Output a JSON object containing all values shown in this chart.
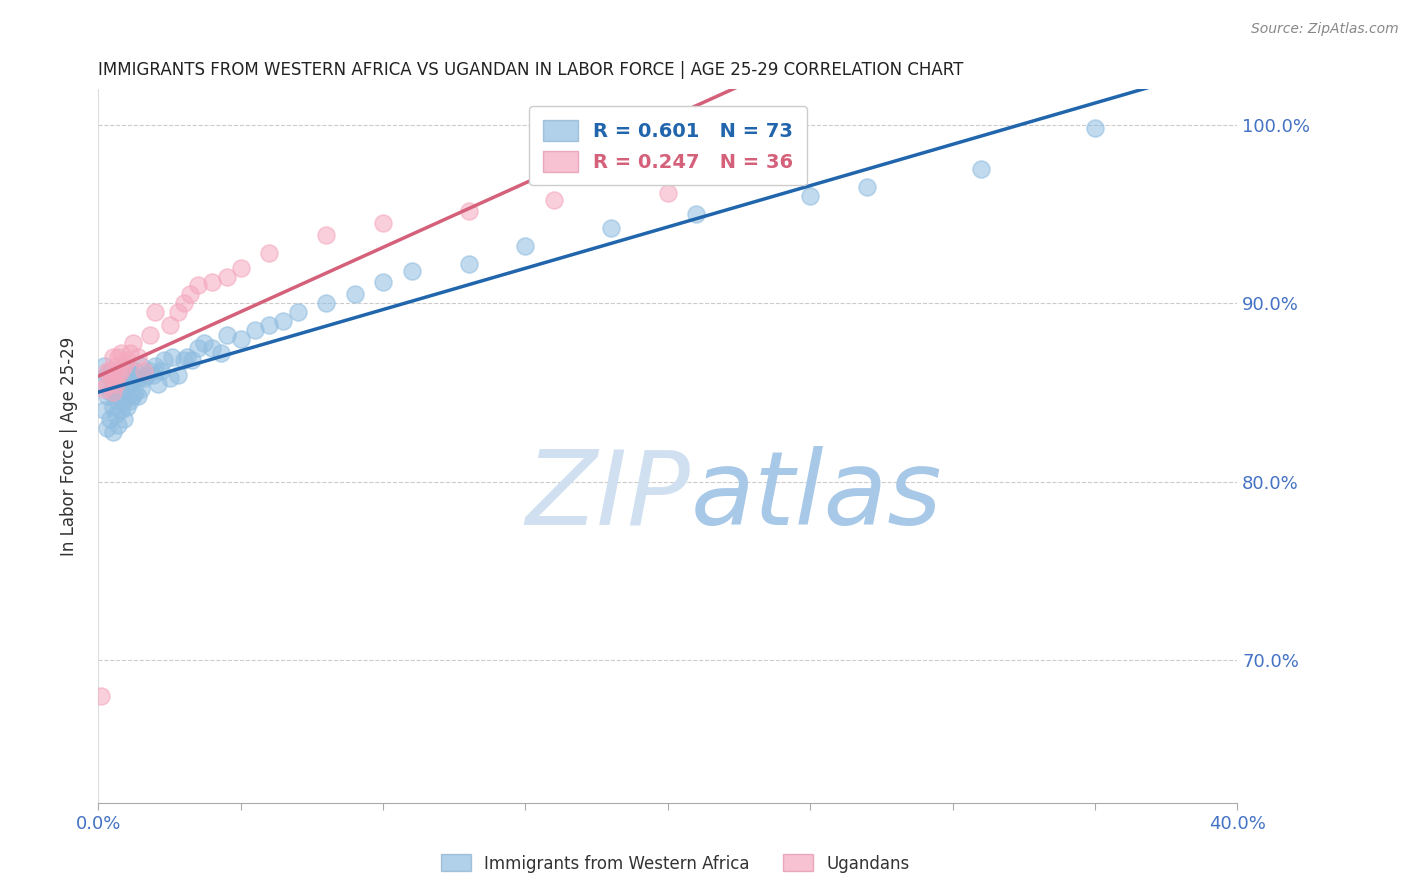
{
  "title": "IMMIGRANTS FROM WESTERN AFRICA VS UGANDAN IN LABOR FORCE | AGE 25-29 CORRELATION CHART",
  "source": "Source: ZipAtlas.com",
  "ylabel": "In Labor Force | Age 25-29",
  "xlim": [
    0.0,
    0.4
  ],
  "ylim": [
    0.62,
    1.02
  ],
  "xticks": [
    0.0,
    0.05,
    0.1,
    0.15,
    0.2,
    0.25,
    0.3,
    0.35,
    0.4
  ],
  "yticks": [
    0.7,
    0.8,
    0.9,
    1.0
  ],
  "yticklabels": [
    "70.0%",
    "80.0%",
    "90.0%",
    "100.0%"
  ],
  "blue_color": "#90bde0",
  "pink_color": "#f4a8be",
  "blue_line_color": "#2166ac",
  "pink_line_color": "#d4607a",
  "R_blue": 0.601,
  "N_blue": 73,
  "R_pink": 0.247,
  "N_pink": 36,
  "watermark_zip": "ZIP",
  "watermark_atlas": "atlas",
  "watermark_color": "#cddff0",
  "grid_color": "#cccccc",
  "title_color": "#222222",
  "tick_label_color": "#4472c4",
  "legend_label_blue": "Immigrants from Western Africa",
  "legend_label_pink": "Ugandans",
  "blue_x": [
    0.001,
    0.002,
    0.002,
    0.003,
    0.003,
    0.003,
    0.004,
    0.004,
    0.004,
    0.005,
    0.005,
    0.005,
    0.005,
    0.006,
    0.006,
    0.006,
    0.007,
    0.007,
    0.007,
    0.008,
    0.008,
    0.009,
    0.009,
    0.009,
    0.01,
    0.01,
    0.01,
    0.011,
    0.011,
    0.012,
    0.012,
    0.013,
    0.013,
    0.014,
    0.014,
    0.015,
    0.015,
    0.016,
    0.017,
    0.018,
    0.019,
    0.02,
    0.021,
    0.022,
    0.023,
    0.025,
    0.026,
    0.028,
    0.03,
    0.031,
    0.033,
    0.035,
    0.037,
    0.04,
    0.043,
    0.045,
    0.05,
    0.055,
    0.06,
    0.065,
    0.07,
    0.08,
    0.09,
    0.1,
    0.11,
    0.13,
    0.15,
    0.18,
    0.21,
    0.25,
    0.27,
    0.31,
    0.35
  ],
  "blue_y": [
    0.855,
    0.84,
    0.865,
    0.83,
    0.848,
    0.86,
    0.835,
    0.85,
    0.862,
    0.828,
    0.842,
    0.852,
    0.862,
    0.838,
    0.848,
    0.858,
    0.832,
    0.845,
    0.855,
    0.84,
    0.85,
    0.835,
    0.845,
    0.858,
    0.842,
    0.852,
    0.862,
    0.845,
    0.855,
    0.848,
    0.86,
    0.85,
    0.862,
    0.848,
    0.858,
    0.852,
    0.865,
    0.858,
    0.86,
    0.862,
    0.86,
    0.865,
    0.855,
    0.862,
    0.868,
    0.858,
    0.87,
    0.86,
    0.868,
    0.87,
    0.868,
    0.875,
    0.878,
    0.875,
    0.872,
    0.882,
    0.88,
    0.885,
    0.888,
    0.89,
    0.895,
    0.9,
    0.905,
    0.912,
    0.918,
    0.922,
    0.932,
    0.942,
    0.95,
    0.96,
    0.965,
    0.975,
    0.998
  ],
  "pink_x": [
    0.001,
    0.002,
    0.003,
    0.003,
    0.004,
    0.005,
    0.005,
    0.005,
    0.006,
    0.006,
    0.007,
    0.007,
    0.008,
    0.008,
    0.009,
    0.01,
    0.011,
    0.012,
    0.014,
    0.016,
    0.018,
    0.02,
    0.025,
    0.028,
    0.03,
    0.032,
    0.035,
    0.04,
    0.045,
    0.05,
    0.06,
    0.08,
    0.1,
    0.13,
    0.16,
    0.2
  ],
  "pink_y": [
    0.68,
    0.852,
    0.855,
    0.862,
    0.862,
    0.85,
    0.858,
    0.87,
    0.855,
    0.865,
    0.86,
    0.87,
    0.862,
    0.872,
    0.865,
    0.868,
    0.872,
    0.878,
    0.87,
    0.862,
    0.882,
    0.895,
    0.888,
    0.895,
    0.9,
    0.905,
    0.91,
    0.912,
    0.915,
    0.92,
    0.928,
    0.938,
    0.945,
    0.952,
    0.958,
    0.962
  ]
}
